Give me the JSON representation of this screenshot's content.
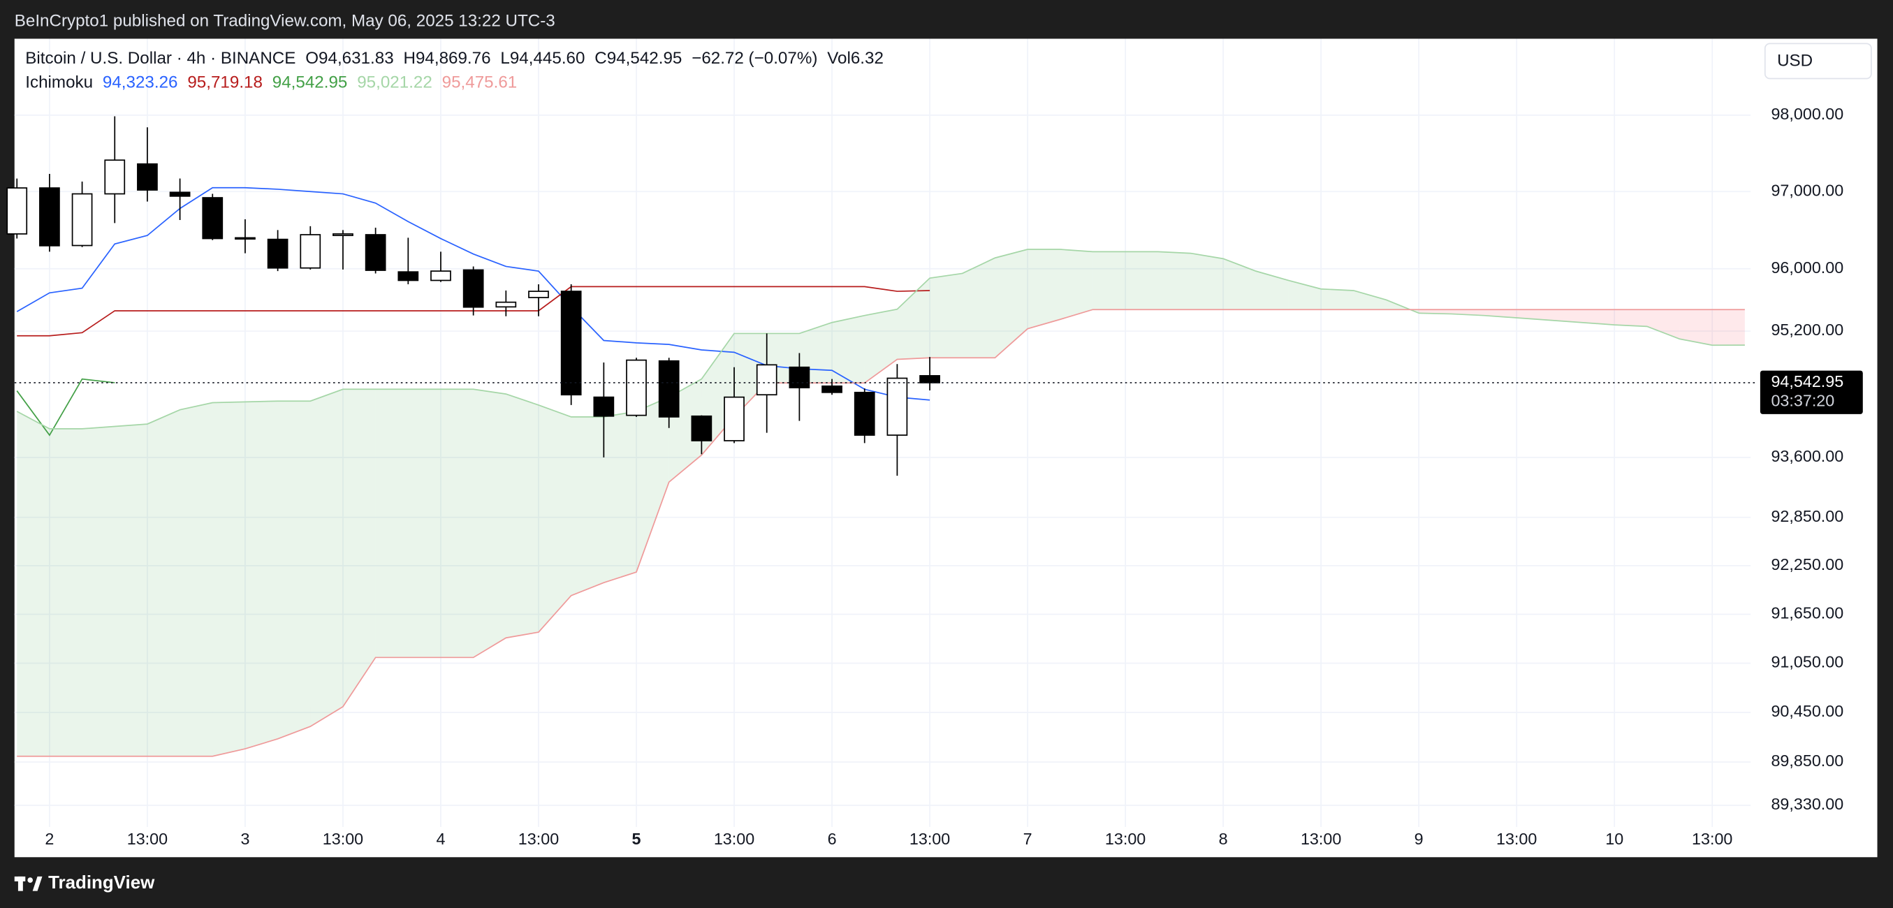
{
  "header": {
    "publisher": "BeInCrypto1 published on TradingView.com, May 06, 2025 13:22 UTC-3"
  },
  "legend": {
    "symbol": "Bitcoin / U.S. Dollar · 4h · BINANCE",
    "ohlc": [
      {
        "label": "O",
        "value": "94,631.83"
      },
      {
        "label": "H",
        "value": "94,869.76"
      },
      {
        "label": "L",
        "value": "94,445.60"
      },
      {
        "label": "C",
        "value": "94,542.95"
      }
    ],
    "change": "−62.72 (−0.07%)",
    "volume": {
      "label": "Vol",
      "value": "6.32"
    },
    "indicator": "Ichimoku"
  },
  "toolbar": {
    "currency": "USD"
  },
  "footer": {
    "brand": "TradingView"
  },
  "chart_data": {
    "type": "candlestick",
    "log": true,
    "grid": true,
    "up_color": "#ffffff",
    "down_color": "#000000",
    "x": [
      -4,
      0,
      4,
      8,
      12,
      16,
      20,
      24,
      28,
      32,
      36,
      40,
      44,
      48,
      52,
      56,
      60,
      64,
      68,
      72,
      76,
      80,
      84,
      88,
      92,
      96,
      100,
      104,
      108
    ],
    "open": [
      96450,
      97047,
      96300,
      96970,
      97360,
      96990,
      96920,
      96400,
      96380,
      96010,
      96430,
      96440,
      95960,
      95850,
      95985,
      95510,
      95630,
      95710,
      94360,
      94130,
      94820,
      94120,
      93810,
      94390,
      94740,
      94500,
      94420,
      93880,
      94631.83
    ],
    "high": [
      97170,
      97230,
      97130,
      97985,
      97840,
      97170,
      96970,
      96640,
      96500,
      96550,
      96500,
      96530,
      96400,
      96220,
      96030,
      95720,
      95800,
      95800,
      94800,
      94860,
      94860,
      94130,
      94740,
      95170,
      94920,
      94590,
      94470,
      94780,
      94869.76
    ],
    "low": [
      96390,
      96220,
      96280,
      96590,
      96870,
      96630,
      96370,
      96200,
      95970,
      95990,
      95990,
      95940,
      95800,
      95830,
      95400,
      95390,
      95390,
      94260,
      93600,
      94110,
      93970,
      93640,
      93780,
      93910,
      94060,
      94390,
      93780,
      93370,
      94445.6
    ],
    "close": [
      97047,
      96297,
      96970,
      97410,
      97020,
      96940,
      96390,
      96390,
      96010,
      96440,
      96450,
      95980,
      95850,
      95970,
      95507,
      95570,
      95710,
      94390,
      94120,
      94830,
      94110,
      93810,
      94360,
      94770,
      94480,
      94420,
      93880,
      94600,
      94542.95
    ],
    "series": [
      {
        "color": "#2962ff",
        "value_label": "94,323.26",
        "x": [
          -4,
          0,
          4,
          8,
          12,
          16,
          20,
          24,
          28,
          32,
          36,
          40,
          44,
          48,
          52,
          56,
          60,
          64,
          68,
          72,
          76,
          80,
          84,
          88,
          92,
          96,
          100,
          104,
          108
        ],
        "values": [
          95450,
          95690,
          95750,
          96320,
          96430,
          96780,
          97050,
          97050,
          97030,
          97000,
          96970,
          96850,
          96610,
          96390,
          96190,
          96030,
          95970,
          95510,
          95080,
          95050,
          95030,
          94960,
          94930,
          94760,
          94720,
          94700,
          94460,
          94360,
          94323.26
        ]
      },
      {
        "color": "#b71c1c",
        "value_label": "95,719.18",
        "x": [
          -4,
          0,
          4,
          8,
          12,
          16,
          20,
          24,
          28,
          32,
          36,
          40,
          44,
          48,
          52,
          56,
          60,
          64,
          68,
          72,
          76,
          80,
          84,
          88,
          92,
          96,
          100,
          104,
          108
        ],
        "values": [
          95140,
          95140,
          95180,
          95460,
          95460,
          95460,
          95460,
          95460,
          95460,
          95460,
          95460,
          95460,
          95460,
          95460,
          95460,
          95460,
          95460,
          95770,
          95770,
          95770,
          95770,
          95770,
          95770,
          95770,
          95770,
          95770,
          95770,
          95710,
          95719.18
        ]
      },
      {
        "color": "#43a047",
        "value_label": "94,542.95",
        "x": [
          -4,
          0,
          4,
          8
        ],
        "values": [
          94440,
          93880,
          94590,
          94542.95
        ]
      },
      {
        "color": "#a5d6a7",
        "value_label": "95,021.22",
        "cloud_edge": "a",
        "x": [
          -4,
          0,
          4,
          8,
          12,
          16,
          20,
          24,
          28,
          32,
          36,
          40,
          44,
          48,
          52,
          56,
          60,
          64,
          68,
          72,
          76,
          80,
          84,
          88,
          92,
          96,
          100,
          104,
          108,
          112,
          116,
          120,
          124,
          128,
          132,
          136,
          140,
          144,
          148,
          152,
          156,
          160,
          164,
          168,
          172,
          176,
          180,
          184,
          188,
          192,
          196,
          200,
          204,
          208
        ],
        "values": [
          94180,
          93960,
          93960,
          93990,
          94020,
          94200,
          94290,
          94300,
          94310,
          94310,
          94460,
          94460,
          94460,
          94460,
          94460,
          94400,
          94260,
          94110,
          94110,
          94180,
          94360,
          94590,
          95170,
          95170,
          95170,
          95310,
          95400,
          95480,
          95880,
          95940,
          96140,
          96250,
          96250,
          96220,
          96220,
          96220,
          96200,
          96130,
          95970,
          95850,
          95740,
          95720,
          95600,
          95430,
          95420,
          95400,
          95370,
          95340,
          95310,
          95280,
          95260,
          95100,
          95020,
          95021.22
        ]
      },
      {
        "color": "#ef9a9a",
        "value_label": "95,475.61",
        "cloud_edge": "b",
        "x": [
          -4,
          0,
          4,
          8,
          12,
          16,
          20,
          24,
          28,
          32,
          36,
          40,
          44,
          48,
          52,
          56,
          60,
          64,
          68,
          72,
          76,
          80,
          84,
          88,
          92,
          96,
          100,
          104,
          108,
          112,
          116,
          120,
          124,
          128,
          132,
          136,
          140,
          144,
          148,
          152,
          156,
          160,
          164,
          168,
          172,
          176,
          180,
          184,
          188,
          192,
          196,
          200,
          204,
          208
        ],
        "values": [
          89920,
          89920,
          89920,
          89920,
          89920,
          89920,
          89920,
          90010,
          90130,
          90280,
          90520,
          91120,
          91120,
          91120,
          91120,
          91360,
          91430,
          91880,
          92040,
          92170,
          93290,
          93630,
          94110,
          94540,
          94540,
          94540,
          94540,
          94840,
          94860,
          94860,
          94860,
          95230,
          95350,
          95475.61,
          95475.61,
          95475.61,
          95475.61,
          95475.61,
          95475.61,
          95475.61,
          95475.61,
          95475.61,
          95475.61,
          95475.61,
          95475.61,
          95475.61,
          95475.61,
          95475.61,
          95475.61,
          95475.61,
          95475.61,
          95475.61,
          95475.61,
          95475.61
        ]
      }
    ],
    "cloud": {
      "up_color": "rgba(67,160,71,0.11)",
      "down_color": "rgba(242,54,69,0.11)"
    },
    "last": {
      "value": 94542.95,
      "label": "94,542.95",
      "countdown": "03:37:20"
    },
    "xlim": [
      -4.3,
      208.7
    ],
    "xticks": [
      {
        "value": 0,
        "label": "2"
      },
      {
        "value": 12,
        "label": "13:00"
      },
      {
        "value": 24,
        "label": "3"
      },
      {
        "value": 36,
        "label": "13:00"
      },
      {
        "value": 48,
        "label": "4"
      },
      {
        "value": 60,
        "label": "13:00"
      },
      {
        "value": 72,
        "label": "5",
        "bold": true
      },
      {
        "value": 84,
        "label": "13:00"
      },
      {
        "value": 96,
        "label": "6"
      },
      {
        "value": 108,
        "label": "13:00"
      },
      {
        "value": 120,
        "label": "7"
      },
      {
        "value": 132,
        "label": "13:00"
      },
      {
        "value": 144,
        "label": "8"
      },
      {
        "value": 156,
        "label": "13:00"
      },
      {
        "value": 168,
        "label": "9"
      },
      {
        "value": 180,
        "label": "13:00"
      },
      {
        "value": 192,
        "label": "10"
      },
      {
        "value": 204,
        "label": "13:00"
      }
    ],
    "ylim": [
      89070,
      99010
    ],
    "yticks": [
      {
        "value": 98000,
        "label": "98,000.00"
      },
      {
        "value": 97000,
        "label": "97,000.00"
      },
      {
        "value": 96000,
        "label": "96,000.00"
      },
      {
        "value": 95200,
        "label": "95,200.00"
      },
      {
        "value": 93600,
        "label": "93,600.00"
      },
      {
        "value": 92850,
        "label": "92,850.00"
      },
      {
        "value": 92250,
        "label": "92,250.00"
      },
      {
        "value": 91650,
        "label": "91,650.00"
      },
      {
        "value": 91050,
        "label": "91,050.00"
      },
      {
        "value": 90450,
        "label": "90,450.00"
      },
      {
        "value": 89850,
        "label": "89,850.00"
      },
      {
        "value": 89330,
        "label": "89,330.00"
      }
    ]
  }
}
